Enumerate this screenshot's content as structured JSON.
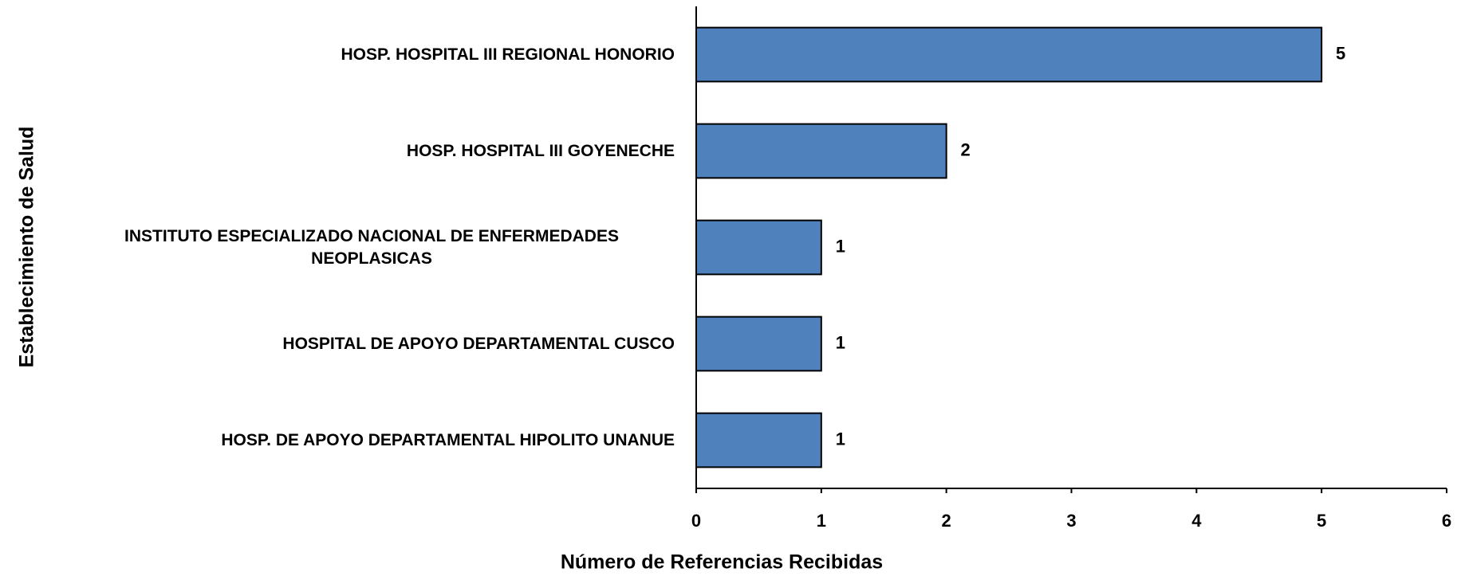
{
  "chart_data": {
    "type": "bar",
    "orientation": "horizontal",
    "xlabel": "Número de Referencias Recibidas",
    "ylabel": "Establecimiento de Salud",
    "categories": [
      "HOSP. HOSPITAL III REGIONAL HONORIO",
      "HOSP. HOSPITAL III GOYENECHE",
      "INSTITUTO ESPECIALIZADO NACIONAL DE ENFERMEDADES NEOPLASICAS",
      "HOSPITAL DE APOYO DEPARTAMENTAL CUSCO",
      "HOSP. DE APOYO DEPARTAMENTAL HIPOLITO UNANUE"
    ],
    "values": [
      5,
      2,
      1,
      1,
      1
    ],
    "color": "#4f81bd",
    "xlim": [
      0,
      6
    ],
    "xticks": [
      0,
      1,
      2,
      3,
      4,
      5,
      6
    ],
    "grid": false
  }
}
